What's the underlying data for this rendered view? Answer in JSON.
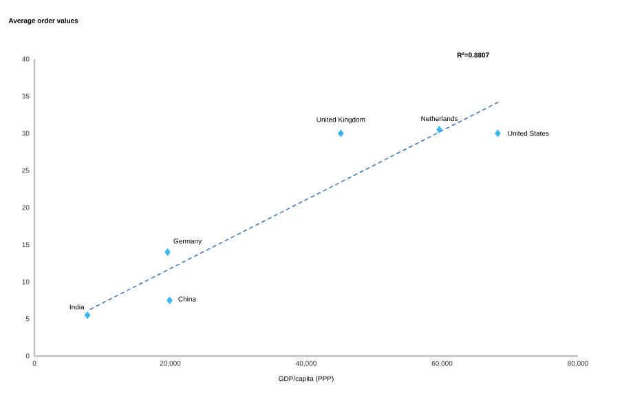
{
  "chart_data": {
    "type": "scatter",
    "xlabel": "GDP/capita (PPP)",
    "ylabel": "Average order values",
    "xlim": [
      0,
      80000
    ],
    "xticks": [
      0,
      {
        "value": 20000,
        "label": "20,000"
      },
      {
        "value": 40000,
        "label": "40,000"
      },
      {
        "value": 60000,
        "label": "60,000"
      },
      {
        "value": 80000,
        "label": "80,000"
      }
    ],
    "ylim": [
      0,
      40
    ],
    "yticks": [
      0,
      5,
      10,
      15,
      20,
      25,
      30,
      35,
      40
    ],
    "marker": "diamond",
    "grid": false,
    "series": [
      {
        "color": "#3cb4f0",
        "x": [
          7800,
          19600,
          19900,
          45100,
          59600,
          68200
        ],
        "values": [
          5.5,
          14,
          7.5,
          30,
          30.5,
          30
        ]
      },
      {
        "type": "line",
        "color": "#4a7bb5",
        "line_style": "dashed",
        "marker": "none",
        "x": [
          7800,
          68500
        ],
        "values": [
          6.1,
          34.3
        ]
      }
    ],
    "annotations": [
      {
        "text": "India",
        "x": 7800,
        "y": 5.5
      },
      {
        "text": "Germany",
        "x": 19600,
        "y": 14
      },
      {
        "text": "China",
        "x": 19900,
        "y": 7.5
      },
      {
        "text": "United Kingdom",
        "x": 45100,
        "y": 30
      },
      {
        "text": "Netherlands",
        "x": 59600,
        "y": 30.5
      },
      {
        "text": "United States",
        "x": 68200,
        "y": 30
      },
      "R²=0.8807"
    ]
  }
}
